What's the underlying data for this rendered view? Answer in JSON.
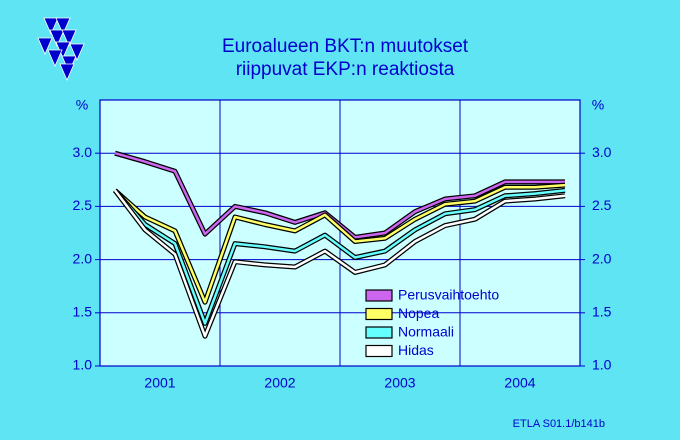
{
  "chart_data": {
    "type": "line",
    "title": [
      "Euroalueen  BKT:n  muutokset",
      "riippuvat  EKP:n  reaktiosta"
    ],
    "y_unit": "%",
    "footer": "ETLA S01.1/b141b",
    "categories": [
      "2001",
      "2002",
      "2003",
      "2004"
    ],
    "series": [
      {
        "name": "Perusvaihtoehto",
        "color": "#cc66ee",
        "values": [
          [
            3.0,
            2.92,
            2.83,
            2.24
          ],
          [
            2.5,
            2.44,
            2.35,
            2.44
          ],
          [
            2.21,
            2.25,
            2.45,
            2.57
          ],
          [
            2.6,
            2.73,
            2.73,
            2.73
          ]
        ]
      },
      {
        "name": "Nopea",
        "color": "#ffff66",
        "values": [
          [
            2.65,
            2.4,
            2.27,
            1.6
          ],
          [
            2.4,
            2.33,
            2.27,
            2.42
          ],
          [
            2.17,
            2.2,
            2.38,
            2.52
          ],
          [
            2.55,
            2.68,
            2.68,
            2.7
          ]
        ]
      },
      {
        "name": "Normaali",
        "color": "#66ffff",
        "values": [
          [
            2.65,
            2.33,
            2.15,
            1.4
          ],
          [
            2.15,
            2.12,
            2.08,
            2.23
          ],
          [
            2.02,
            2.08,
            2.28,
            2.43
          ],
          [
            2.47,
            2.6,
            2.62,
            2.65
          ]
        ]
      },
      {
        "name": "Hidas",
        "color": "#ffffff",
        "values": [
          [
            2.65,
            2.28,
            2.05,
            1.28
          ],
          [
            1.98,
            1.95,
            1.93,
            2.08
          ],
          [
            1.88,
            1.95,
            2.17,
            2.32
          ],
          [
            2.38,
            2.55,
            2.57,
            2.6
          ]
        ]
      }
    ],
    "ylim": [
      1.0,
      3.5
    ],
    "yticks": [
      {
        "value": 1,
        "label": "1.0"
      },
      {
        "value": 1.5,
        "label": "1.5"
      },
      {
        "value": 2,
        "label": "2.0"
      },
      {
        "value": 2.5,
        "label": "2.5"
      },
      {
        "value": 3,
        "label": "3.0"
      }
    ],
    "grid": true
  }
}
